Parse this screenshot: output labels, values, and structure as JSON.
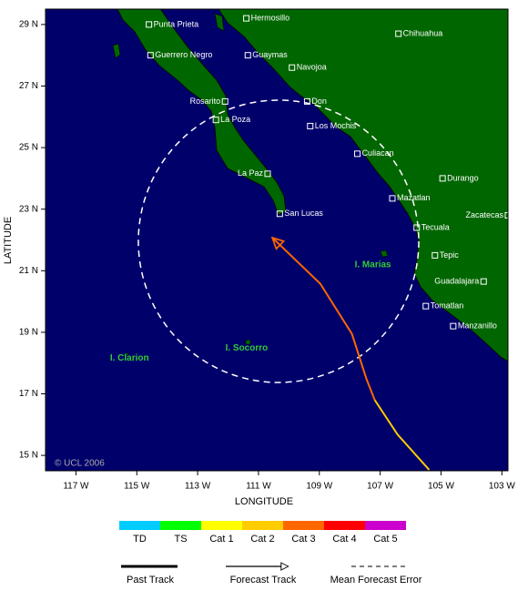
{
  "map": {
    "xlabel": "LONGITUDE",
    "ylabel": "LATITUDE",
    "xlim": [
      -118,
      -102.8
    ],
    "ylim": [
      14.5,
      29.5
    ],
    "xticks": [
      {
        "value": -117,
        "label": "117 W"
      },
      {
        "value": -115,
        "label": "115 W"
      },
      {
        "value": -113,
        "label": "113 W"
      },
      {
        "value": -111,
        "label": "111 W"
      },
      {
        "value": -109,
        "label": "109 W"
      },
      {
        "value": -107,
        "label": "107 W"
      },
      {
        "value": -105,
        "label": "105 W"
      },
      {
        "value": -103,
        "label": "103 W"
      }
    ],
    "yticks": [
      {
        "value": 15,
        "label": "15 N"
      },
      {
        "value": 17,
        "label": "17 N"
      },
      {
        "value": 19,
        "label": "19 N"
      },
      {
        "value": 21,
        "label": "21 N"
      },
      {
        "value": 23,
        "label": "23 N"
      },
      {
        "value": 25,
        "label": "25 N"
      },
      {
        "value": 27,
        "label": "27 N"
      },
      {
        "value": 29,
        "label": "29 N"
      }
    ],
    "cities": [
      {
        "name": "Hermosillo",
        "lon": -111.4,
        "lat": 29.2
      },
      {
        "name": "Chihuahua",
        "lon": -106.4,
        "lat": 28.7
      },
      {
        "name": "Punta Prieta",
        "lon": -114.6,
        "lat": 29.0
      },
      {
        "name": "Guerrero Negro",
        "lon": -114.55,
        "lat": 28.0
      },
      {
        "name": "Guaymas",
        "lon": -111.35,
        "lat": 28.0
      },
      {
        "name": "Navojoa",
        "lon": -109.9,
        "lat": 27.6
      },
      {
        "name": "Rosarito",
        "lon": -112.1,
        "lat": 26.5
      },
      {
        "name": "Don",
        "lon": -109.4,
        "lat": 26.5
      },
      {
        "name": "La Poza",
        "lon": -112.4,
        "lat": 25.9
      },
      {
        "name": "Los Mochis",
        "lon": -109.3,
        "lat": 25.7
      },
      {
        "name": "Culiacan",
        "lon": -107.75,
        "lat": 24.8
      },
      {
        "name": "Durango",
        "lon": -104.95,
        "lat": 24.0
      },
      {
        "name": "La Paz",
        "lon": -110.7,
        "lat": 24.15
      },
      {
        "name": "Mazatlan",
        "lon": -106.6,
        "lat": 23.35
      },
      {
        "name": "San Lucas",
        "lon": -110.3,
        "lat": 22.85
      },
      {
        "name": "Zacatecas",
        "lon": -102.8,
        "lat": 22.8
      },
      {
        "name": "Tecuala",
        "lon": -105.8,
        "lat": 22.4
      },
      {
        "name": "Tepic",
        "lon": -105.2,
        "lat": 21.5
      },
      {
        "name": "Guadalajara",
        "lon": -103.6,
        "lat": 20.65
      },
      {
        "name": "Tomatlan",
        "lon": -105.5,
        "lat": 19.85
      },
      {
        "name": "Manzanillo",
        "lon": -104.6,
        "lat": 19.2
      }
    ],
    "islands": [
      {
        "name": "I. Marias",
        "lon": -107.24,
        "lat": 21.19
      },
      {
        "name": "I. Socorro",
        "lon": -111.39,
        "lat": 18.48
      },
      {
        "name": "I. Clarion",
        "lon": -115.24,
        "lat": 18.16
      }
    ],
    "track": [
      {
        "color": "#ffcc00",
        "lon": [
          -105.39,
          -106.43,
          -107.18
        ],
        "lat": [
          14.53,
          15.68,
          16.8
        ]
      },
      {
        "color": "#ff6600",
        "lon": [
          -107.18,
          -107.45,
          -107.93,
          -108.97,
          -110.52
        ],
        "lat": [
          16.8,
          17.48,
          18.95,
          20.58,
          22.05
        ]
      }
    ],
    "copyright": "© UCL 2006"
  },
  "legend": {
    "categories": [
      {
        "name": "TD",
        "color": "#00ccff"
      },
      {
        "name": "TS",
        "color": "#00ff00"
      },
      {
        "name": "Cat 1",
        "color": "#ffff00"
      },
      {
        "name": "Cat 2",
        "color": "#ffcc00"
      },
      {
        "name": "Cat 3",
        "color": "#ff6600"
      },
      {
        "name": "Cat 4",
        "color": "#ff0000"
      },
      {
        "name": "Cat 5",
        "color": "#cc00cc"
      }
    ],
    "items": [
      "Past Track",
      "Forecast Track",
      "Mean Forecast Error"
    ]
  }
}
